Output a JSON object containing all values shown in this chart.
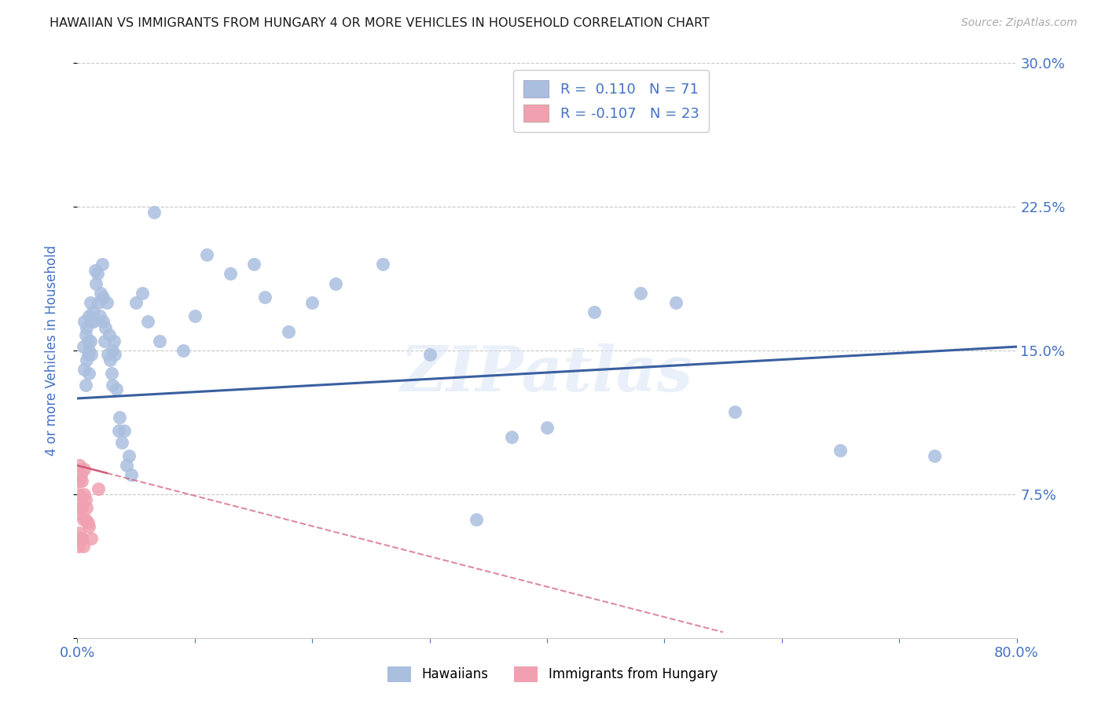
{
  "title": "HAWAIIAN VS IMMIGRANTS FROM HUNGARY 4 OR MORE VEHICLES IN HOUSEHOLD CORRELATION CHART",
  "source": "Source: ZipAtlas.com",
  "ylabel": "4 or more Vehicles in Household",
  "xlim": [
    0.0,
    0.8
  ],
  "ylim": [
    0.0,
    0.3
  ],
  "xtick_positions": [
    0.0,
    0.1,
    0.2,
    0.3,
    0.4,
    0.5,
    0.6,
    0.7,
    0.8
  ],
  "xticklabels": [
    "0.0%",
    "",
    "",
    "",
    "",
    "",
    "",
    "",
    "80.0%"
  ],
  "ytick_positions": [
    0.0,
    0.075,
    0.15,
    0.225,
    0.3
  ],
  "yticklabels_right": [
    "",
    "7.5%",
    "15.0%",
    "22.5%",
    "30.0%"
  ],
  "grid_color": "#c8c8c8",
  "background_color": "#ffffff",
  "hawaiian_color": "#aabfde",
  "hungary_color": "#f0a0b0",
  "hawaiian_line_color": "#3a5fa0",
  "hungary_line_color": "#d05878",
  "hawaii_R": 0.11,
  "hawaii_N": 71,
  "hungary_R": -0.107,
  "hungary_N": 23,
  "watermark": "ZIPatlas",
  "label_color": "#4472c4",
  "hawaiian_x": [
    0.005,
    0.006,
    0.006,
    0.007,
    0.007,
    0.008,
    0.008,
    0.009,
    0.009,
    0.01,
    0.01,
    0.01,
    0.011,
    0.011,
    0.012,
    0.012,
    0.013,
    0.014,
    0.015,
    0.016,
    0.017,
    0.018,
    0.019,
    0.02,
    0.021,
    0.022,
    0.022,
    0.023,
    0.024,
    0.025,
    0.026,
    0.027,
    0.028,
    0.029,
    0.03,
    0.03,
    0.031,
    0.032,
    0.033,
    0.035,
    0.036,
    0.038,
    0.04,
    0.042,
    0.044,
    0.046,
    0.05,
    0.055,
    0.06,
    0.065,
    0.07,
    0.09,
    0.1,
    0.11,
    0.13,
    0.15,
    0.16,
    0.18,
    0.2,
    0.22,
    0.26,
    0.3,
    0.34,
    0.37,
    0.4,
    0.44,
    0.48,
    0.51,
    0.56,
    0.65,
    0.73
  ],
  "hawaiian_y": [
    0.152,
    0.14,
    0.165,
    0.132,
    0.158,
    0.145,
    0.162,
    0.155,
    0.148,
    0.168,
    0.15,
    0.138,
    0.155,
    0.175,
    0.165,
    0.148,
    0.17,
    0.165,
    0.192,
    0.185,
    0.19,
    0.175,
    0.168,
    0.18,
    0.195,
    0.178,
    0.165,
    0.155,
    0.162,
    0.175,
    0.148,
    0.158,
    0.145,
    0.138,
    0.15,
    0.132,
    0.155,
    0.148,
    0.13,
    0.108,
    0.115,
    0.102,
    0.108,
    0.09,
    0.095,
    0.085,
    0.175,
    0.18,
    0.165,
    0.222,
    0.155,
    0.15,
    0.168,
    0.2,
    0.19,
    0.195,
    0.178,
    0.16,
    0.175,
    0.185,
    0.195,
    0.148,
    0.062,
    0.105,
    0.11,
    0.17,
    0.18,
    0.175,
    0.118,
    0.098,
    0.095
  ],
  "hungary_x": [
    0.001,
    0.001,
    0.001,
    0.002,
    0.002,
    0.002,
    0.003,
    0.003,
    0.003,
    0.004,
    0.004,
    0.004,
    0.005,
    0.005,
    0.006,
    0.006,
    0.007,
    0.007,
    0.008,
    0.009,
    0.01,
    0.012,
    0.018
  ],
  "hungary_y": [
    0.082,
    0.065,
    0.048,
    0.09,
    0.075,
    0.055,
    0.085,
    0.07,
    0.052,
    0.082,
    0.068,
    0.052,
    0.062,
    0.048,
    0.088,
    0.075,
    0.072,
    0.062,
    0.068,
    0.06,
    0.058,
    0.052,
    0.078
  ],
  "haw_line_x0": 0.0,
  "haw_line_x1": 0.8,
  "haw_line_y0": 0.125,
  "haw_line_y1": 0.152,
  "hun_line_x0": 0.0,
  "hun_line_x1": 0.55,
  "hun_line_y0": 0.09,
  "hun_line_y1": 0.003
}
